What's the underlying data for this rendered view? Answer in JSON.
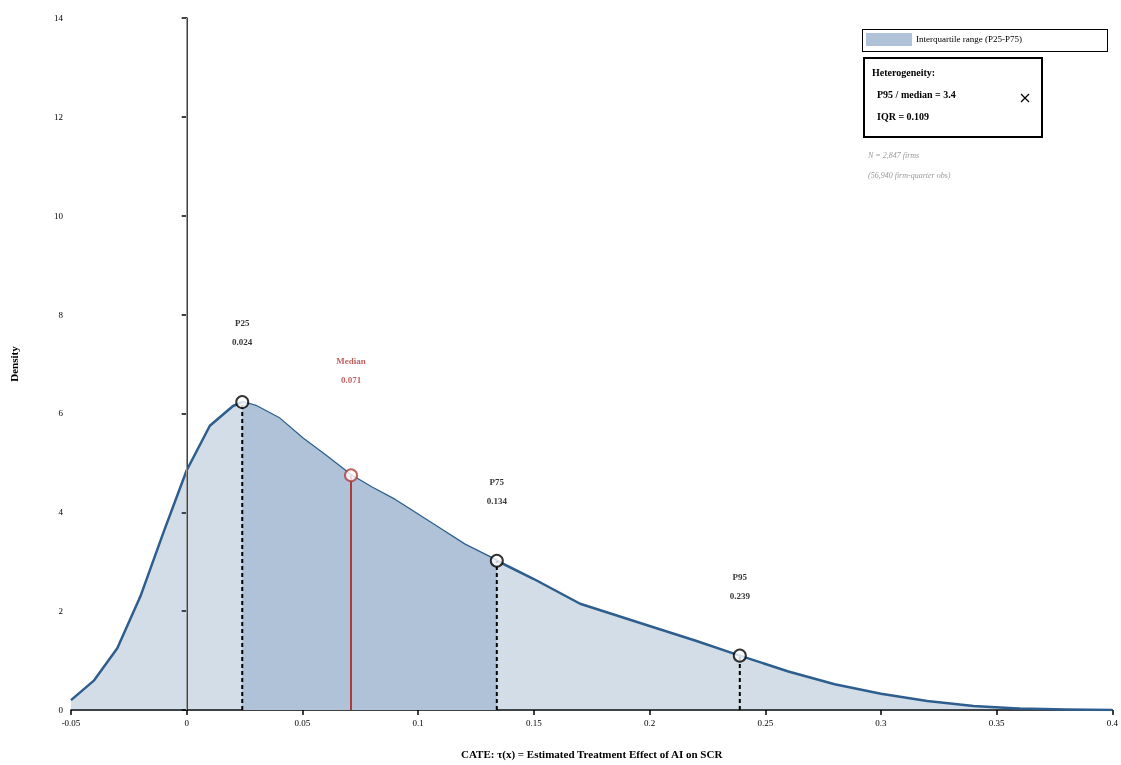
{
  "chart_data": {
    "type": "area",
    "xlabel": "CATE: τ(x) = Estimated Treatment Effect of AI on SCR",
    "ylabel": "Density",
    "xlim": [
      -0.05,
      0.4
    ],
    "xticks": [
      -0.05,
      0,
      0.05,
      0.1,
      0.15,
      0.2,
      0.25,
      0.3,
      0.35,
      0.4
    ],
    "ylim": [
      0,
      14
    ],
    "yticks": [
      0,
      2,
      4,
      6,
      8,
      10,
      12,
      14
    ],
    "grid": false,
    "legend": "top right",
    "ref_lines": [
      {
        "axis": "x",
        "value": 0,
        "label": null,
        "color": "#9a9a9a"
      }
    ],
    "series": [
      {
        "color": "#2e5e8e",
        "x": [
          -0.05,
          -0.04,
          -0.03,
          -0.02,
          -0.01,
          0,
          0.01,
          0.02,
          0.024,
          0.03,
          0.04,
          0.05,
          0.06,
          0.071,
          0.08,
          0.09,
          0.1,
          0.11,
          0.12,
          0.134,
          0.15,
          0.17,
          0.2,
          0.22,
          0.239,
          0.26,
          0.28,
          0.3,
          0.32,
          0.34,
          0.36,
          0.38,
          0.4
        ],
        "values": [
          0.2,
          0.6,
          1.25,
          2.3,
          3.6,
          4.85,
          5.75,
          6.15,
          6.23,
          6.15,
          5.9,
          5.5,
          5.15,
          4.75,
          4.5,
          4.25,
          3.95,
          3.65,
          3.35,
          3.02,
          2.65,
          2.15,
          1.7,
          1.4,
          1.1,
          0.78,
          0.52,
          0.33,
          0.18,
          0.08,
          0.03,
          0.01,
          0
        ]
      },
      {
        "type": "area",
        "name": "Interquartile range (P25-P75)",
        "color": "#afc2d8",
        "x": [
          0.024,
          0.03,
          0.04,
          0.05,
          0.06,
          0.071,
          0.08,
          0.09,
          0.1,
          0.11,
          0.12,
          0.134
        ],
        "values": [
          6.23,
          6.15,
          5.9,
          5.5,
          5.15,
          4.75,
          4.5,
          4.25,
          3.95,
          3.65,
          3.35,
          3.02
        ]
      },
      {
        "type": "line",
        "color": "#000000",
        "line_style": "dashed",
        "x": [
          0.024,
          0.024
        ],
        "values": [
          0,
          6.23
        ]
      },
      {
        "type": "line",
        "color": "#b03a3a",
        "line_style": "solid",
        "x": [
          0.071,
          0.071
        ],
        "values": [
          0,
          4.75
        ]
      },
      {
        "type": "line",
        "color": "#000000",
        "line_style": "dashed",
        "x": [
          0.134,
          0.134
        ],
        "values": [
          0,
          3.02
        ]
      },
      {
        "type": "line",
        "color": "#000000",
        "line_style": "dashed",
        "x": [
          0.239,
          0.239
        ],
        "values": [
          0,
          1.1
        ]
      },
      {
        "type": "scatter",
        "marker": "circle",
        "colors": [
          "#000000",
          "#b03a3a",
          "#000000",
          "#000000"
        ],
        "x": [
          0.024,
          0.071,
          0.134,
          0.239
        ],
        "values": [
          6.23,
          4.75,
          3.02,
          1.1
        ]
      }
    ],
    "annotations": [
      "Heterogeneity:",
      "P95 / median = 3.4",
      "IQR = 0.109",
      "N = 2,847 firms",
      "(56,940 firm-quarter obs)",
      "P25",
      "0.024",
      "Median",
      "0.071",
      "P75",
      "0.134",
      "P95",
      "0.239"
    ]
  }
}
